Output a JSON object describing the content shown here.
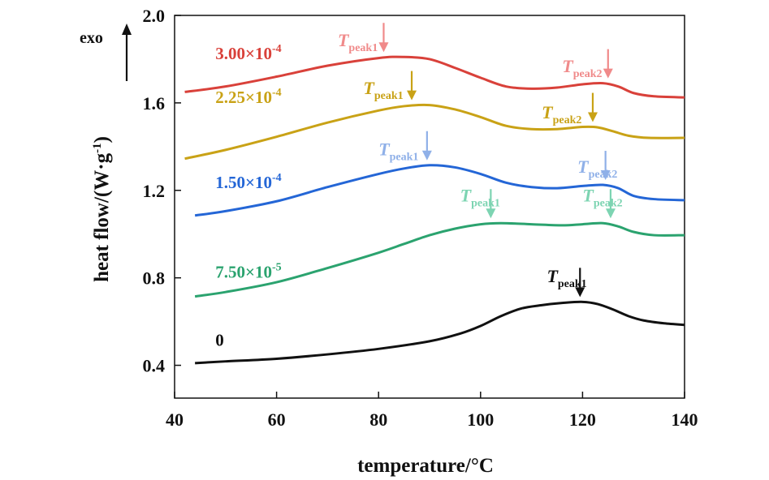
{
  "chart_data": {
    "type": "line",
    "title": "",
    "xlabel": "temperature/°C",
    "ylabel_main": "heat flow/(W·g",
    "ylabel_sup": "-1",
    "ylabel_close": ")",
    "exo_label": "exo",
    "xlim": [
      40,
      140
    ],
    "ylim": [
      0.25,
      2.0
    ],
    "xticks": [
      40,
      60,
      80,
      100,
      120,
      140
    ],
    "yticks": [
      0.4,
      0.8,
      1.2,
      1.6,
      2.0
    ],
    "xtick_labels": [
      "40",
      "60",
      "80",
      "100",
      "120",
      "140"
    ],
    "ytick_labels": [
      "0.4",
      "0.8",
      "1.2",
      "1.6",
      "2.0"
    ],
    "peak_text": "T",
    "series": [
      {
        "name": "0",
        "color": "#111111",
        "label_pos": [
          48,
          0.49
        ],
        "points": [
          [
            44,
            0.41
          ],
          [
            50,
            0.418
          ],
          [
            60,
            0.43
          ],
          [
            70,
            0.45
          ],
          [
            80,
            0.475
          ],
          [
            90,
            0.51
          ],
          [
            96,
            0.545
          ],
          [
            100,
            0.58
          ],
          [
            104,
            0.625
          ],
          [
            108,
            0.66
          ],
          [
            112,
            0.675
          ],
          [
            116,
            0.685
          ],
          [
            120,
            0.69
          ],
          [
            123,
            0.68
          ],
          [
            126,
            0.655
          ],
          [
            129,
            0.625
          ],
          [
            132,
            0.605
          ],
          [
            136,
            0.592
          ],
          [
            140,
            0.585
          ]
        ],
        "peaks": [
          {
            "id": "1",
            "sub": "peak1",
            "x": 119.5,
            "y": 0.69,
            "label_x": 113,
            "label_y": 0.78
          }
        ]
      },
      {
        "name": "7.50×10",
        "exp": "-5",
        "color": "#2ba36f",
        "label_pos": [
          48,
          0.8
        ],
        "points": [
          [
            44,
            0.715
          ],
          [
            50,
            0.735
          ],
          [
            60,
            0.78
          ],
          [
            70,
            0.845
          ],
          [
            80,
            0.915
          ],
          [
            85,
            0.955
          ],
          [
            90,
            0.995
          ],
          [
            95,
            1.025
          ],
          [
            100,
            1.045
          ],
          [
            104,
            1.05
          ],
          [
            110,
            1.045
          ],
          [
            116,
            1.04
          ],
          [
            120,
            1.045
          ],
          [
            124,
            1.05
          ],
          [
            127,
            1.035
          ],
          [
            130,
            1.01
          ],
          [
            134,
            0.995
          ],
          [
            140,
            0.995
          ]
        ],
        "peaks": [
          {
            "id": "1",
            "sub": "peak1",
            "x": 102,
            "y": 1.05,
            "label_x": 96,
            "label_y": 1.15,
            "light": "#7dd4b2"
          },
          {
            "id": "2",
            "sub": "peak2",
            "x": 125.5,
            "y": 1.05,
            "label_x": 120,
            "label_y": 1.15,
            "light": "#7dd4b2"
          }
        ]
      },
      {
        "name": "1.50×10",
        "exp": "-4",
        "color": "#2466d6",
        "label_pos": [
          48,
          1.21
        ],
        "points": [
          [
            44,
            1.085
          ],
          [
            50,
            1.105
          ],
          [
            60,
            1.15
          ],
          [
            70,
            1.215
          ],
          [
            80,
            1.275
          ],
          [
            85,
            1.3
          ],
          [
            90,
            1.315
          ],
          [
            95,
            1.305
          ],
          [
            100,
            1.275
          ],
          [
            105,
            1.235
          ],
          [
            110,
            1.215
          ],
          [
            115,
            1.21
          ],
          [
            120,
            1.22
          ],
          [
            124,
            1.225
          ],
          [
            127,
            1.21
          ],
          [
            130,
            1.175
          ],
          [
            134,
            1.16
          ],
          [
            140,
            1.155
          ]
        ],
        "peaks": [
          {
            "id": "1",
            "sub": "peak1",
            "x": 89.5,
            "y": 1.315,
            "label_x": 80,
            "label_y": 1.36,
            "light": "#8fb0e8"
          },
          {
            "id": "2",
            "sub": "peak2",
            "x": 124.5,
            "y": 1.225,
            "label_x": 119,
            "label_y": 1.28,
            "light": "#8fb0e8"
          }
        ]
      },
      {
        "name": "2.25×10",
        "exp": "-4",
        "color": "#c9a216",
        "label_pos": [
          48,
          1.6
        ],
        "points": [
          [
            42,
            1.345
          ],
          [
            50,
            1.385
          ],
          [
            60,
            1.445
          ],
          [
            70,
            1.51
          ],
          [
            80,
            1.565
          ],
          [
            85,
            1.585
          ],
          [
            90,
            1.59
          ],
          [
            95,
            1.57
          ],
          [
            100,
            1.535
          ],
          [
            105,
            1.495
          ],
          [
            110,
            1.48
          ],
          [
            115,
            1.48
          ],
          [
            120,
            1.49
          ],
          [
            123,
            1.488
          ],
          [
            126,
            1.47
          ],
          [
            129,
            1.45
          ],
          [
            133,
            1.44
          ],
          [
            140,
            1.44
          ]
        ],
        "peaks": [
          {
            "id": "1",
            "sub": "peak1",
            "x": 86.5,
            "y": 1.59,
            "label_x": 77,
            "label_y": 1.64
          },
          {
            "id": "2",
            "sub": "peak2",
            "x": 122,
            "y": 1.49,
            "label_x": 112,
            "label_y": 1.53
          }
        ]
      },
      {
        "name": "3.00×10",
        "exp": "-4",
        "color": "#d9413a",
        "label_pos": [
          48,
          1.8
        ],
        "points": [
          [
            42,
            1.65
          ],
          [
            50,
            1.675
          ],
          [
            60,
            1.72
          ],
          [
            70,
            1.77
          ],
          [
            80,
            1.805
          ],
          [
            85,
            1.81
          ],
          [
            90,
            1.8
          ],
          [
            95,
            1.76
          ],
          [
            100,
            1.715
          ],
          [
            105,
            1.675
          ],
          [
            110,
            1.665
          ],
          [
            115,
            1.67
          ],
          [
            120,
            1.685
          ],
          [
            124,
            1.69
          ],
          [
            127,
            1.675
          ],
          [
            130,
            1.645
          ],
          [
            134,
            1.63
          ],
          [
            140,
            1.625
          ]
        ],
        "peaks": [
          {
            "id": "1",
            "sub": "peak1",
            "x": 81,
            "y": 1.81,
            "label_x": 72,
            "label_y": 1.86,
            "light": "#f08a8a"
          },
          {
            "id": "2",
            "sub": "peak2",
            "x": 125,
            "y": 1.69,
            "label_x": 116,
            "label_y": 1.74,
            "light": "#f08a8a"
          }
        ]
      }
    ]
  }
}
